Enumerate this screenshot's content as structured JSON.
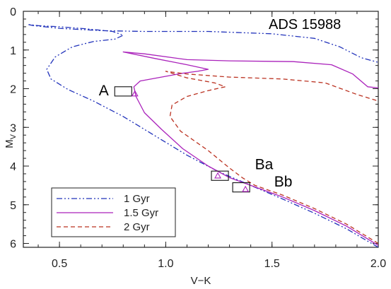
{
  "chart_data": {
    "type": "line",
    "title": "ADS 15988",
    "xlabel": "V−K",
    "ylabel": "M",
    "ylabel_sub": "V",
    "xlim": [
      0.33,
      2.0
    ],
    "ylim": [
      6.1,
      0.0
    ],
    "y_inverted": true,
    "grid": false,
    "legend_position": "bottom-left",
    "x_ticks": [
      0.5,
      1.0,
      1.5,
      2.0
    ],
    "x_tick_labels": [
      "0.5",
      "1.0",
      "1.5",
      "2.0"
    ],
    "y_ticks": [
      0,
      1,
      2,
      3,
      4,
      5,
      6
    ],
    "y_tick_labels": [
      "0",
      "1",
      "2",
      "3",
      "4",
      "5",
      "6"
    ],
    "series": [
      {
        "name": "1 Gyr",
        "color": "#2233bb",
        "dash": "dash-dot-dot",
        "points": [
          [
            2.0,
            6.1
          ],
          [
            1.85,
            5.62
          ],
          [
            1.7,
            5.22
          ],
          [
            1.55,
            4.85
          ],
          [
            1.4,
            4.5
          ],
          [
            1.25,
            4.15
          ],
          [
            1.1,
            3.72
          ],
          [
            0.95,
            3.22
          ],
          [
            0.8,
            2.72
          ],
          [
            0.66,
            2.32
          ],
          [
            0.54,
            2.02
          ],
          [
            0.46,
            1.75
          ],
          [
            0.44,
            1.5
          ],
          [
            0.48,
            1.18
          ],
          [
            0.56,
            0.92
          ],
          [
            0.66,
            0.78
          ],
          [
            0.76,
            0.72
          ],
          [
            0.8,
            0.62
          ],
          [
            0.75,
            0.52
          ],
          [
            0.62,
            0.45
          ],
          [
            0.5,
            0.4
          ],
          [
            0.4,
            0.37
          ],
          [
            0.35,
            0.34
          ],
          [
            0.38,
            0.37
          ],
          [
            0.5,
            0.44
          ],
          [
            0.7,
            0.5
          ],
          [
            0.9,
            0.52
          ],
          [
            1.2,
            0.52
          ],
          [
            1.5,
            0.58
          ],
          [
            1.7,
            0.7
          ],
          [
            1.82,
            0.92
          ],
          [
            1.92,
            1.2
          ],
          [
            2.0,
            1.32
          ]
        ]
      },
      {
        "name": "1.5 Gyr",
        "color": "#aa22bb",
        "dash": "solid",
        "points": [
          [
            2.0,
            6.05
          ],
          [
            1.85,
            5.55
          ],
          [
            1.7,
            5.15
          ],
          [
            1.55,
            4.8
          ],
          [
            1.4,
            4.5
          ],
          [
            1.3,
            4.3
          ],
          [
            1.2,
            4.0
          ],
          [
            1.08,
            3.55
          ],
          [
            0.98,
            3.05
          ],
          [
            0.9,
            2.62
          ],
          [
            0.86,
            2.2
          ],
          [
            0.85,
            1.95
          ],
          [
            0.88,
            1.8
          ],
          [
            1.0,
            1.68
          ],
          [
            1.08,
            1.6
          ],
          [
            1.15,
            1.55
          ],
          [
            1.2,
            1.5
          ],
          [
            1.1,
            1.38
          ],
          [
            0.95,
            1.22
          ],
          [
            0.8,
            1.05
          ],
          [
            0.9,
            1.1
          ],
          [
            1.1,
            1.25
          ],
          [
            1.3,
            1.28
          ],
          [
            1.6,
            1.3
          ],
          [
            1.78,
            1.38
          ],
          [
            1.88,
            1.62
          ],
          [
            1.95,
            1.95
          ],
          [
            2.0,
            1.98
          ]
        ]
      },
      {
        "name": "2 Gyr",
        "color": "#bb3322",
        "dash": "dashed",
        "points": [
          [
            2.0,
            6.0
          ],
          [
            1.85,
            5.5
          ],
          [
            1.7,
            5.1
          ],
          [
            1.55,
            4.75
          ],
          [
            1.42,
            4.5
          ],
          [
            1.36,
            4.3
          ],
          [
            1.3,
            4.05
          ],
          [
            1.2,
            3.6
          ],
          [
            1.07,
            3.1
          ],
          [
            1.02,
            2.72
          ],
          [
            1.03,
            2.42
          ],
          [
            1.1,
            2.2
          ],
          [
            1.2,
            2.05
          ],
          [
            1.28,
            1.95
          ],
          [
            1.23,
            1.85
          ],
          [
            1.1,
            1.72
          ],
          [
            1.0,
            1.55
          ],
          [
            1.1,
            1.62
          ],
          [
            1.3,
            1.7
          ],
          [
            1.55,
            1.75
          ],
          [
            1.75,
            1.85
          ],
          [
            1.9,
            2.15
          ],
          [
            2.0,
            2.32
          ]
        ]
      }
    ],
    "markers": [
      {
        "x": 0.855,
        "y": 2.13,
        "color": "#aa22bb"
      },
      {
        "x": 1.245,
        "y": 4.25,
        "color": "#aa22bb"
      },
      {
        "x": 1.375,
        "y": 4.6,
        "color": "#aa22bb"
      }
    ],
    "error_boxes": [
      {
        "x": 0.8,
        "y": 2.07,
        "dx": 0.04,
        "dy": 0.24
      },
      {
        "x": 1.255,
        "y": 4.25,
        "dx": 0.04,
        "dy": 0.24
      },
      {
        "x": 1.355,
        "y": 4.55,
        "dx": 0.04,
        "dy": 0.24
      }
    ],
    "annotations": [
      {
        "text": "A",
        "x": 0.685,
        "y": 2.05
      },
      {
        "text": "Ba",
        "x": 1.42,
        "y": 3.95
      },
      {
        "text": "Bb",
        "x": 1.51,
        "y": 4.4
      }
    ]
  }
}
